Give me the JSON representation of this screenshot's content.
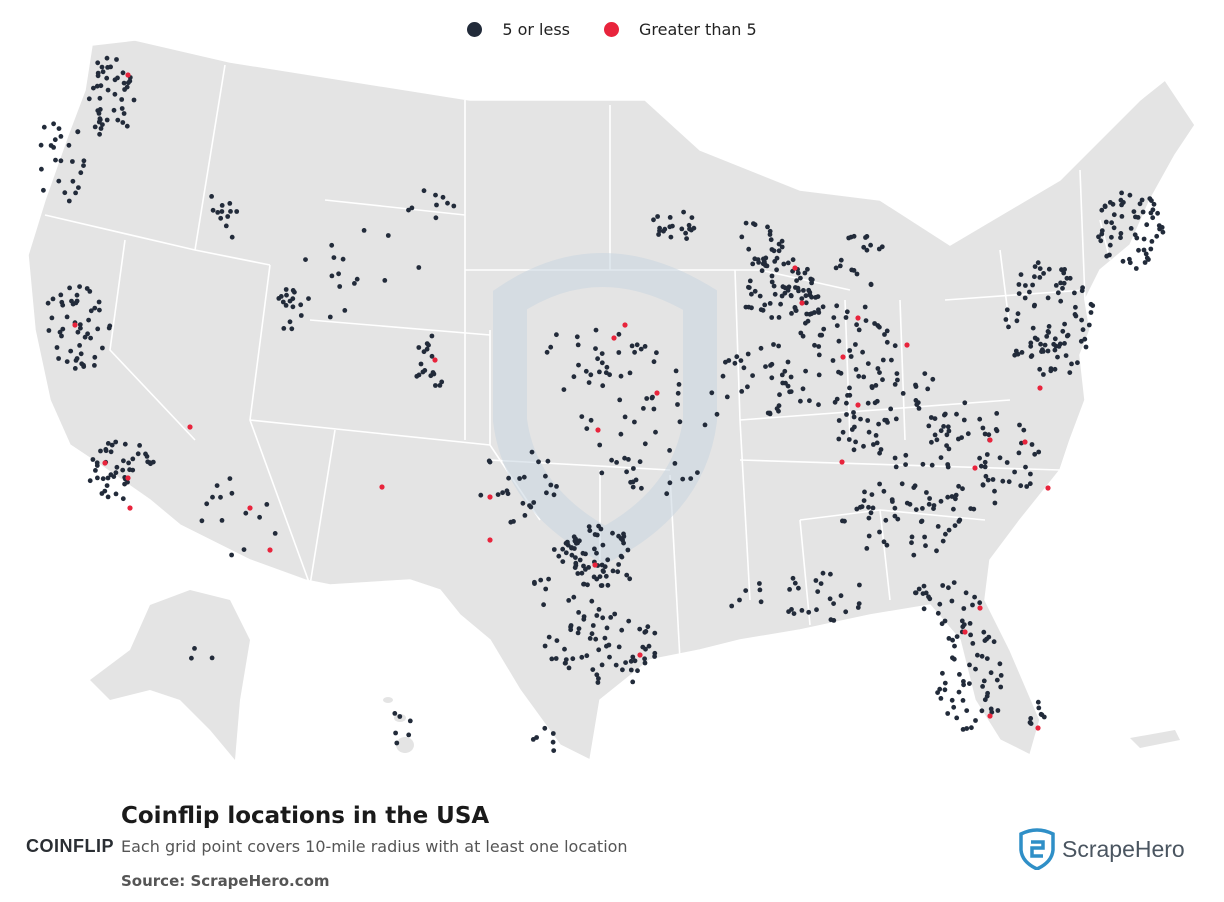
{
  "legend": {
    "low_label": "5 or less",
    "high_label": "Greater than 5",
    "low_color": "#222b3a",
    "high_color": "#e8243c"
  },
  "title": "Coinflip locations in the USA",
  "subtitle": "Each grid point covers 10-mile radius with at least one location",
  "source": "Source: ScrapeHero.com",
  "brand_logo": "COINFLIP",
  "publisher_logo": "ScrapeHero",
  "colors": {
    "land": "#e4e4e4",
    "state_border": "#ffffff",
    "watermark": "#c9d6e0"
  }
}
